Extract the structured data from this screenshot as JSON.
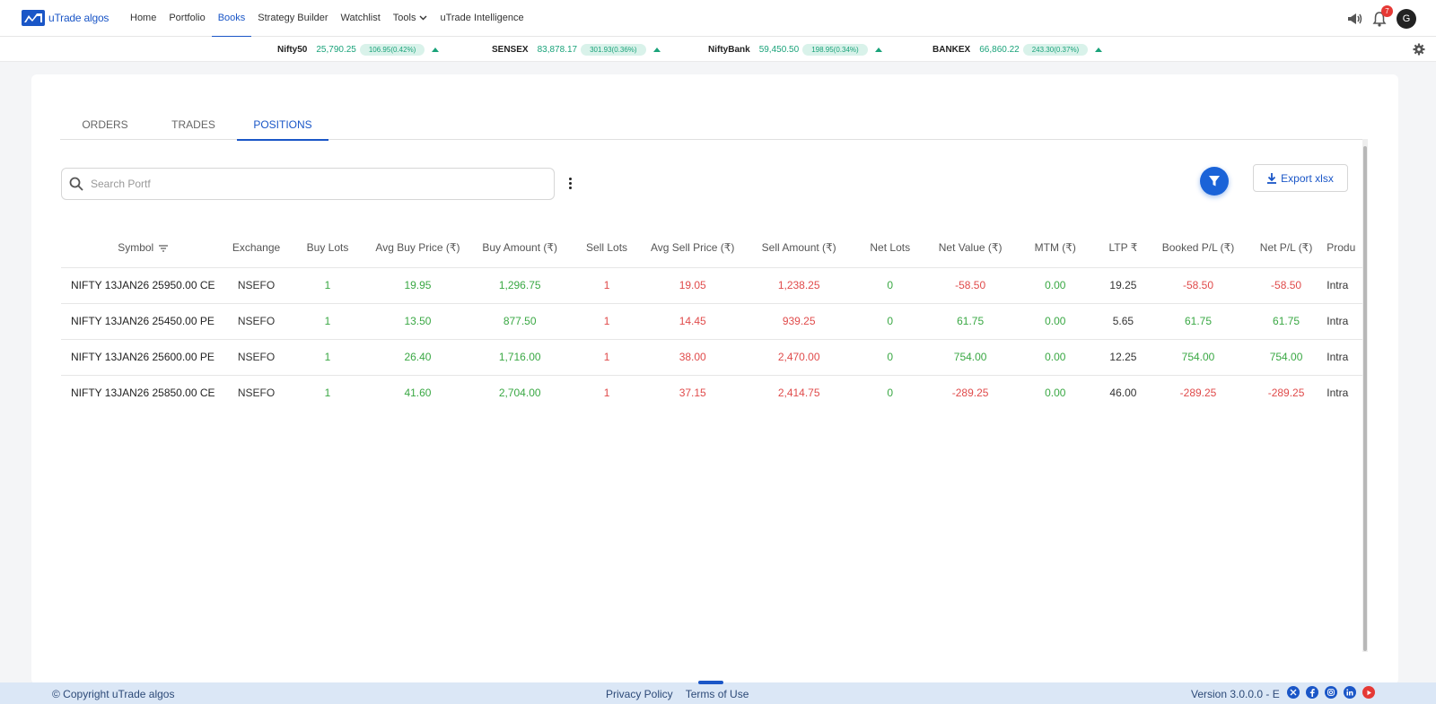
{
  "nav": {
    "logo_text_1": "uTrade",
    "logo_text_2": "algos",
    "items": [
      {
        "label": "Home"
      },
      {
        "label": "Portfolio"
      },
      {
        "label": "Books"
      },
      {
        "label": "Strategy Builder"
      },
      {
        "label": "Watchlist"
      },
      {
        "label": "Tools"
      },
      {
        "label": "uTrade Intelligence"
      }
    ],
    "active_item": "Books",
    "notification_count": "7",
    "avatar_initial": "G"
  },
  "ticker": [
    {
      "name": "Nifty50",
      "price": "25,790.25",
      "change": "106.95(0.42%)"
    },
    {
      "name": "SENSEX",
      "price": "83,878.17",
      "change": "301.93(0.36%)"
    },
    {
      "name": "NiftyBank",
      "price": "59,450.50",
      "change": "198.95(0.34%)"
    },
    {
      "name": "BANKEX",
      "price": "66,860.22",
      "change": "243.30(0.37%)"
    }
  ],
  "tabs": [
    {
      "label": "ORDERS"
    },
    {
      "label": "TRADES"
    },
    {
      "label": "POSITIONS"
    }
  ],
  "active_tab": "POSITIONS",
  "search": {
    "placeholder": "Search Portf",
    "value": ""
  },
  "export_label": "Export xlsx",
  "table": {
    "headers": [
      "Symbol",
      "Exchange",
      "Buy Lots",
      "Avg Buy Price (₹)",
      "Buy Amount (₹)",
      "Sell Lots",
      "Avg Sell Price (₹)",
      "Sell Amount (₹)",
      "Net Lots",
      "Net Value (₹)",
      "MTM (₹)",
      "LTP ₹",
      "Booked P/L (₹)",
      "Net P/L (₹)",
      "Produ"
    ],
    "rows": [
      {
        "symbol": "NIFTY 13JAN26 25950.00 CE",
        "exchange": "NSEFO",
        "buy_lots": "1",
        "avg_buy": "19.95",
        "buy_amt": "1,296.75",
        "sell_lots": "1",
        "avg_sell": "19.05",
        "sell_amt": "1,238.25",
        "net_lots": "0",
        "net_value": "-58.50",
        "mtm": "0.00",
        "ltp": "19.25",
        "booked_pl": "-58.50",
        "net_pl": "-58.50",
        "product": "Intra"
      },
      {
        "symbol": "NIFTY 13JAN26 25450.00 PE",
        "exchange": "NSEFO",
        "buy_lots": "1",
        "avg_buy": "13.50",
        "buy_amt": "877.50",
        "sell_lots": "1",
        "avg_sell": "14.45",
        "sell_amt": "939.25",
        "net_lots": "0",
        "net_value": "61.75",
        "mtm": "0.00",
        "ltp": "5.65",
        "booked_pl": "61.75",
        "net_pl": "61.75",
        "product": "Intra"
      },
      {
        "symbol": "NIFTY 13JAN26 25600.00 PE",
        "exchange": "NSEFO",
        "buy_lots": "1",
        "avg_buy": "26.40",
        "buy_amt": "1,716.00",
        "sell_lots": "1",
        "avg_sell": "38.00",
        "sell_amt": "2,470.00",
        "net_lots": "0",
        "net_value": "754.00",
        "mtm": "0.00",
        "ltp": "12.25",
        "booked_pl": "754.00",
        "net_pl": "754.00",
        "product": "Intra"
      },
      {
        "symbol": "NIFTY 13JAN26 25850.00 CE",
        "exchange": "NSEFO",
        "buy_lots": "1",
        "avg_buy": "41.60",
        "buy_amt": "2,704.00",
        "sell_lots": "1",
        "avg_sell": "37.15",
        "sell_amt": "2,414.75",
        "net_lots": "0",
        "net_value": "-289.25",
        "mtm": "0.00",
        "ltp": "46.00",
        "booked_pl": "-289.25",
        "net_pl": "-289.25",
        "product": "Intra"
      }
    ]
  },
  "footer": {
    "copyright": "© Copyright uTrade algos",
    "privacy": "Privacy Policy",
    "terms": "Terms of Use",
    "version": "Version 3.0.0.0 - E",
    "social_icons": [
      "x-icon",
      "facebook-icon",
      "instagram-icon",
      "linkedin-icon",
      "youtube-icon"
    ]
  },
  "colors": {
    "brand": "#1a56c7",
    "positive": "#3aa844",
    "negative": "#e04b4b",
    "ticker_up": "#1aa37a"
  }
}
